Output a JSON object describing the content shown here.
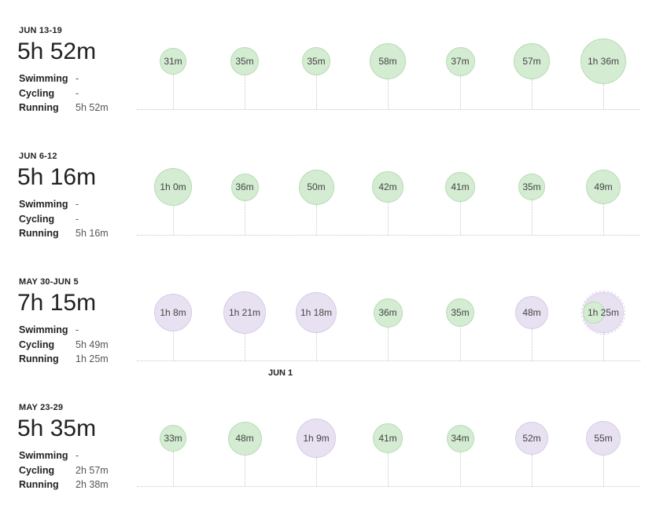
{
  "weeks": [
    {
      "range": "JUN 13-19",
      "total": "5h 52m",
      "sports": [
        {
          "name": "Swimming",
          "value": "-"
        },
        {
          "name": "Cycling",
          "value": "-"
        },
        {
          "name": "Running",
          "value": "5h 52m"
        }
      ],
      "days": [
        {
          "label": "31m",
          "type": "run"
        },
        {
          "label": "35m",
          "type": "run"
        },
        {
          "label": "35m",
          "type": "run"
        },
        {
          "label": "58m",
          "type": "run"
        },
        {
          "label": "37m",
          "type": "run"
        },
        {
          "label": "57m",
          "type": "run"
        },
        {
          "label": "1h 36m",
          "type": "run"
        }
      ]
    },
    {
      "range": "JUN 6-12",
      "total": "5h 16m",
      "sports": [
        {
          "name": "Swimming",
          "value": "-"
        },
        {
          "name": "Cycling",
          "value": "-"
        },
        {
          "name": "Running",
          "value": "5h 16m"
        }
      ],
      "days": [
        {
          "label": "1h 0m",
          "type": "run"
        },
        {
          "label": "36m",
          "type": "run"
        },
        {
          "label": "50m",
          "type": "run"
        },
        {
          "label": "42m",
          "type": "run"
        },
        {
          "label": "41m",
          "type": "run"
        },
        {
          "label": "35m",
          "type": "run"
        },
        {
          "label": "49m",
          "type": "run"
        }
      ]
    },
    {
      "range": "MAY 30-JUN 5",
      "total": "7h 15m",
      "sports": [
        {
          "name": "Swimming",
          "value": "-"
        },
        {
          "name": "Cycling",
          "value": "5h 49m"
        },
        {
          "name": "Running",
          "value": "1h 25m"
        }
      ],
      "days": [
        {
          "label": "1h 8m",
          "type": "cycle"
        },
        {
          "label": "1h 21m",
          "type": "cycle"
        },
        {
          "label": "1h 18m",
          "type": "cycle"
        },
        {
          "label": "36m",
          "type": "run"
        },
        {
          "label": "35m",
          "type": "run"
        },
        {
          "label": "48m",
          "type": "cycle"
        },
        {
          "label": "1h 25m",
          "type": "mixed"
        }
      ],
      "month_marker": "JUN 1"
    },
    {
      "range": "MAY 23-29",
      "total": "5h 35m",
      "sports": [
        {
          "name": "Swimming",
          "value": "-"
        },
        {
          "name": "Cycling",
          "value": "2h 57m"
        },
        {
          "name": "Running",
          "value": "2h 38m"
        }
      ],
      "days": [
        {
          "label": "33m",
          "type": "run"
        },
        {
          "label": "48m",
          "type": "run"
        },
        {
          "label": "1h 9m",
          "type": "cycle"
        },
        {
          "label": "41m",
          "type": "run"
        },
        {
          "label": "34m",
          "type": "run"
        },
        {
          "label": "52m",
          "type": "cycle"
        },
        {
          "label": "55m",
          "type": "cycle"
        }
      ]
    }
  ]
}
